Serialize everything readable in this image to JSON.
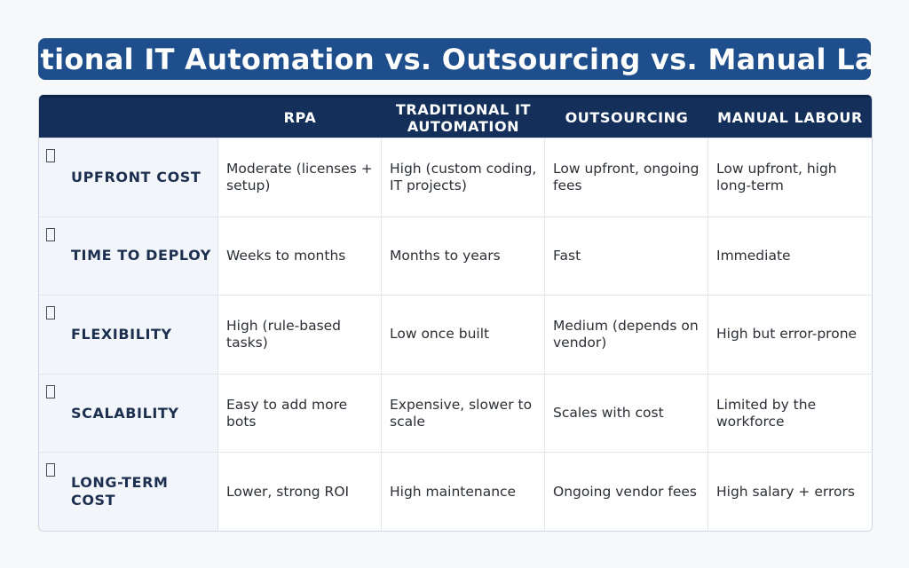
{
  "title": "Traditional IT Automation vs. Outsourcing vs. Manual Labour",
  "table": {
    "headers": [
      "",
      "RPA",
      "Traditional IT Automation",
      "Outsourcing",
      "Manual Labour"
    ],
    "rows": [
      {
        "icon": "placeholder-icon",
        "label": "Upfront Cost",
        "cells": [
          "Moderate (licenses + setup)",
          "High (custom coding, IT projects)",
          "Low upfront, ongoing fees",
          "Low upfront, high long-term"
        ]
      },
      {
        "icon": "placeholder-icon",
        "label": "Time to Deploy",
        "cells": [
          "Weeks to months",
          "Months to years",
          "Fast",
          "Immediate"
        ]
      },
      {
        "icon": "placeholder-icon",
        "label": "Flexibility",
        "cells": [
          "High (rule-based tasks)",
          "Low once built",
          "Medium (depends on vendor)",
          "High but error-prone"
        ]
      },
      {
        "icon": "placeholder-icon",
        "label": "Scalability",
        "cells": [
          "Easy to add more bots",
          "Expensive, slower to scale",
          "Scales with cost",
          "Limited by the workforce"
        ]
      },
      {
        "icon": "placeholder-icon",
        "label": "Long-Term Cost",
        "cells": [
          "Lower, strong ROI",
          "High maintenance",
          "Ongoing vendor fees",
          "High salary + errors"
        ]
      }
    ]
  },
  "colors": {
    "title_bg": "#1f4e8c",
    "header_bg": "#14305a",
    "row_head_bg": "#f2f6fb",
    "label_text": "#1d2f4f"
  }
}
